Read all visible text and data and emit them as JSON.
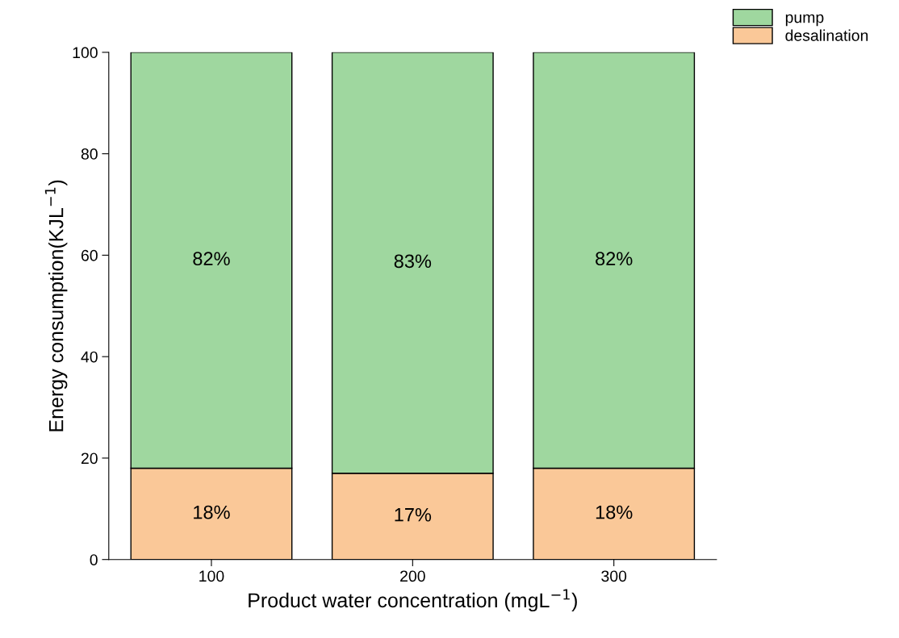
{
  "chart_data": {
    "type": "bar",
    "stacked": true,
    "xlabel": "Product water concentration (mgL$^{−1}$)",
    "ylabel": "Energy consumption(KJL$^{−1}$)",
    "categories": [
      "100",
      "200",
      "300"
    ],
    "series": [
      {
        "name": "desalination",
        "color": "#fac898",
        "values": [
          18,
          17,
          18
        ],
        "value_labels": [
          "18%",
          "17%",
          "18%"
        ]
      },
      {
        "name": "pump",
        "color": "#9fd79f",
        "values": [
          82,
          83,
          82
        ],
        "value_labels": [
          "82%",
          "83%",
          "82%"
        ]
      }
    ],
    "ylim": [
      0,
      100
    ],
    "yticks": [
      0,
      20,
      40,
      60,
      80,
      100
    ],
    "grid": false,
    "legend": "top right"
  }
}
